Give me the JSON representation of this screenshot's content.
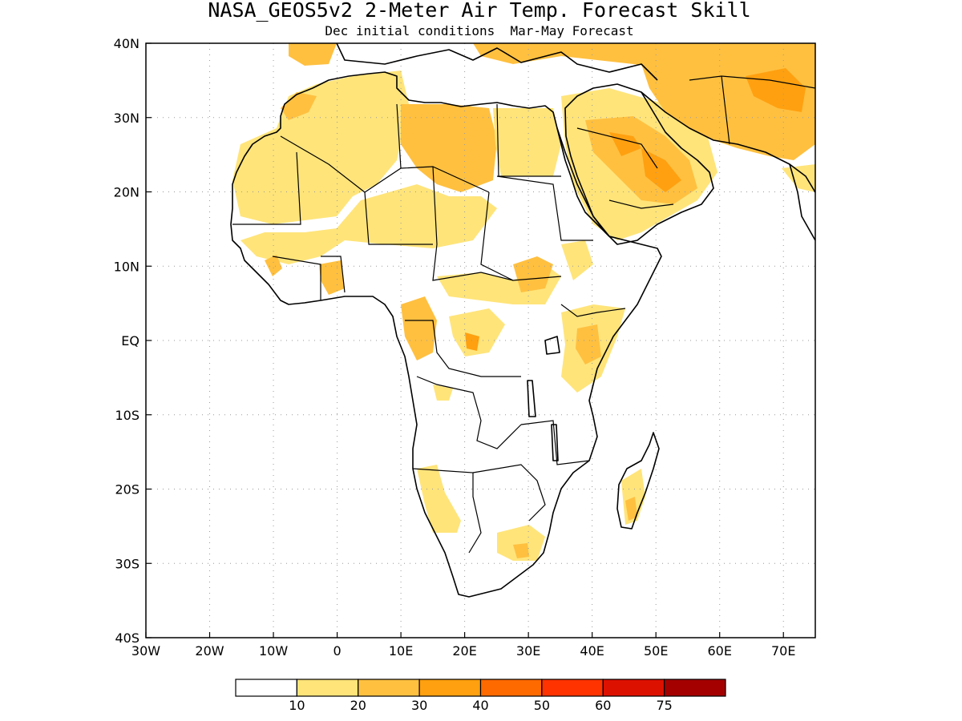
{
  "title": "NASA_GEOS5v2 2-Meter Air Temp. Forecast Skill",
  "subtitle": "Dec initial conditions  Mar-May Forecast",
  "lon_ticks": [
    "30W",
    "20W",
    "10W",
    "0",
    "10E",
    "20E",
    "30E",
    "40E",
    "50E",
    "60E",
    "70E"
  ],
  "lat_ticks": [
    "40N",
    "30N",
    "20N",
    "10N",
    "EQ",
    "10S",
    "20S",
    "30S",
    "40S"
  ],
  "map_extent": {
    "lon": [
      -30,
      75
    ],
    "lat": [
      -40,
      40
    ]
  },
  "gridlines": true,
  "colorbar": {
    "labels": [
      "10",
      "20",
      "30",
      "40",
      "50",
      "60",
      "75"
    ],
    "colors": [
      "#ffffff",
      "#ffe47a",
      "#ffc040",
      "#ffa010",
      "#ff6a00",
      "#ff3300",
      "#dd1100",
      "#a50000"
    ]
  },
  "skill_regions": [
    {
      "name": "sahara-north",
      "level": 1
    },
    {
      "name": "libya",
      "level": 2
    },
    {
      "name": "arabia",
      "level": 2
    },
    {
      "name": "arabia-core",
      "level": 3
    },
    {
      "name": "iran",
      "level": 2
    },
    {
      "name": "central-africa",
      "level": 1
    },
    {
      "name": "east-africa",
      "level": 1
    },
    {
      "name": "southern-africa",
      "level": 1
    },
    {
      "name": "madagascar",
      "level": 1
    }
  ],
  "colors": {
    "coast": "#000000",
    "grid": "#9a9a9a",
    "background": "#ffffff"
  }
}
